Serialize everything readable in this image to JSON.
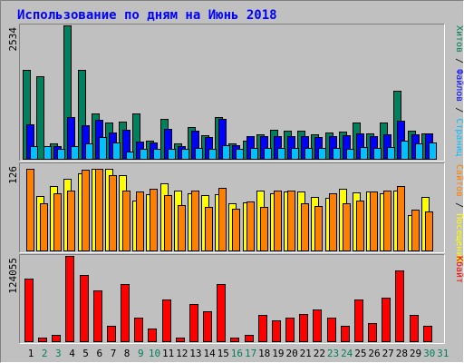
{
  "chart_data": {
    "title": "Использование по дням на Июнь 2018",
    "colors": {
      "background": "#c0c0c0",
      "title": "#0000ff",
      "hits": "#00805c",
      "files": "#0000ff",
      "pages": "#00c0ff",
      "visits": "#ffff00",
      "sites": "#ff8000",
      "kbytes": "#ff0000",
      "weekend_label": "#00805c",
      "weekday_label": "#000000"
    },
    "x": [
      "1",
      "2",
      "3",
      "4",
      "5",
      "6",
      "7",
      "8",
      "9",
      "10",
      "11",
      "12",
      "13",
      "14",
      "15",
      "16",
      "17",
      "18",
      "19",
      "20",
      "21",
      "22",
      "23",
      "24",
      "25",
      "26",
      "27",
      "28",
      "29",
      "30",
      "31"
    ],
    "weekend_days": [
      2,
      3,
      9,
      10,
      16,
      17,
      23,
      24,
      30,
      31
    ],
    "panels": [
      {
        "type": "bar",
        "ymax_label": "2534",
        "ymax": 2534,
        "legend_parts": [
          {
            "text": "Хитов",
            "color": "#00805c"
          },
          {
            "text": " / ",
            "color": "#000000"
          },
          {
            "text": "Файлов",
            "color": "#0000ff"
          },
          {
            "text": " / ",
            "color": "#000000"
          },
          {
            "text": "Страниц",
            "color": "#00c0ff"
          }
        ],
        "series": [
          {
            "name": "Хитов",
            "color": "#00805c",
            "values": [
              1700,
              1570,
              300,
              2534,
              1700,
              880,
              700,
              720,
              870,
              360,
              770,
              300,
              610,
              460,
              810,
              300,
              360,
              480,
              560,
              550,
              550,
              480,
              510,
              530,
              700,
              500,
              700,
              1300,
              550,
              500,
              0
            ]
          },
          {
            "name": "Файлов",
            "color": "#0000ff",
            "values": [
              660,
              0,
              260,
              800,
              650,
              760,
              510,
              560,
              340,
              330,
              580,
              260,
              550,
              430,
              770,
              280,
              440,
              450,
              440,
              450,
              450,
              420,
              450,
              470,
              500,
              450,
              480,
              740,
              480,
              500,
              0
            ]
          },
          {
            "name": "Страниц",
            "color": "#00c0ff",
            "values": [
              250,
              250,
              210,
              250,
              310,
              430,
              320,
              160,
              210,
              210,
              200,
              210,
              220,
              210,
              280,
              200,
              230,
              230,
              230,
              230,
              220,
              230,
              220,
              210,
              240,
              230,
              240,
              360,
              300,
              330,
              0
            ]
          }
        ]
      },
      {
        "type": "bar",
        "ymax_label": "126",
        "ymax": 126,
        "legend_parts": [
          {
            "text": "Сайтов",
            "color": "#ff8000"
          },
          {
            "text": " / ",
            "color": "#000000"
          },
          {
            "text": "Посещений",
            "color": "#ffff00"
          }
        ],
        "series": [
          {
            "name": "Посещений",
            "color": "#ffff00",
            "values": [
              0,
              80,
              95,
              105,
              113,
              120,
              120,
              110,
              73,
              83,
              98,
              88,
              84,
              81,
              83,
              70,
              71,
              88,
              84,
              86,
              86,
              79,
              78,
              90,
              85,
              86,
              84,
              88,
              53,
              79,
              0
            ]
          },
          {
            "name": "Сайтов",
            "color": "#ff8000",
            "values": [
              120,
              70,
              84,
              88,
              118,
              120,
              110,
              88,
              86,
              90,
              82,
              67,
              88,
              64,
              92,
              62,
              72,
              64,
              88,
              88,
              70,
              66,
              84,
              70,
              74,
              86,
              88,
              94,
              60,
              58,
              0
            ]
          }
        ]
      },
      {
        "type": "bar",
        "ymax_label": "124055",
        "ymax": 124055,
        "legend_parts": [
          {
            "text": "Кбайт",
            "color": "#ff0000"
          }
        ],
        "series": [
          {
            "name": "Кбайт",
            "color": "#ff0000",
            "values": [
              92000,
              7000,
              11000,
              124055,
              97000,
              75000,
              23000,
              83000,
              35000,
              19000,
              61000,
              7000,
              55000,
              44000,
              83000,
              7000,
              10000,
              39000,
              31000,
              35000,
              41000,
              47000,
              35000,
              24000,
              62000,
              28000,
              64000,
              103000,
              39000,
              23000,
              0
            ]
          }
        ]
      }
    ]
  }
}
